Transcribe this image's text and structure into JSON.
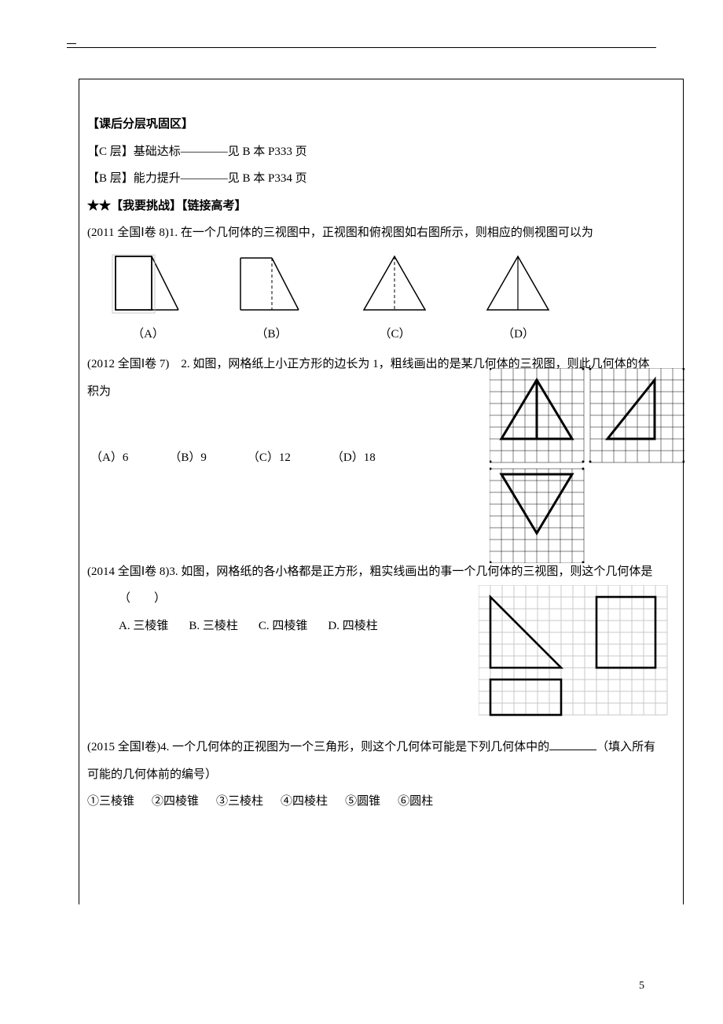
{
  "header": {
    "rule_width": 750
  },
  "sections": {
    "consolidation": "【课后分层巩固区】",
    "level_c": "【C 层】基础达标————见 B 本 P333 页",
    "level_b": "【B 层】能力提升————见 B 本 P334 页",
    "challenge": "★★【我要挑战】【链接高考】"
  },
  "q1": {
    "stem": "(2011 全国Ⅰ卷 8)1. 在一个几何体的三视图中，正视图和俯视图如右图所示，则相应的侧视图可以为",
    "options": {
      "A": "（A）",
      "B": "（B）",
      "C": "（C）",
      "D": "（D）"
    },
    "figures": {
      "type": "line-diagrams",
      "stroke": "#000000",
      "width": 90,
      "height": 80
    }
  },
  "q2": {
    "stem_a": "(2012 全国Ⅰ卷 7)　2. 如图，网格纸上小正方形的边长为 1，粗线画出的是某几何体的三视图，则此几何体的体",
    "stem_b": "积为",
    "options": {
      "A": "（A）6",
      "B": "（B）9",
      "C": "（C）12",
      "D": "（D）18"
    },
    "grid": {
      "cols": 16,
      "rows": 16,
      "cell": 15,
      "stroke": "#000000",
      "thick": 2.5,
      "front": {
        "type": "triangle",
        "pts": [
          [
            1,
            6
          ],
          [
            7,
            6
          ],
          [
            4,
            1
          ]
        ]
      },
      "side": {
        "type": "triangle",
        "pts": [
          [
            10,
            6
          ],
          [
            14,
            6
          ],
          [
            14,
            1
          ]
        ]
      },
      "top": {
        "type": "triangle",
        "pts": [
          [
            1,
            9
          ],
          [
            7,
            9
          ],
          [
            4,
            14
          ]
        ]
      }
    }
  },
  "q3": {
    "stem": "(2014 全国Ⅰ卷 8)3. 如图，网格纸的各小格都是正方形，粗实线画出的事一个几何体的三视图，则这个几何体是",
    "paren": "（　　）",
    "options": {
      "A": "A. 三棱锥",
      "B": "B. 三棱柱",
      "C": "C. 四棱锥",
      "D": "D. 四棱柱"
    },
    "grid": {
      "cols": 16,
      "rows": 11,
      "cell": 15,
      "stroke": "#c8c8c8",
      "thick_stroke": "#000000",
      "front": {
        "type": "right-triangle",
        "pts": [
          [
            1,
            1
          ],
          [
            7,
            7
          ],
          [
            1,
            7
          ]
        ]
      },
      "side": {
        "type": "rect",
        "pts": [
          [
            10,
            1
          ],
          [
            15,
            1
          ],
          [
            15,
            7
          ],
          [
            10,
            7
          ]
        ]
      },
      "top": {
        "type": "rect",
        "pts": [
          [
            1,
            8
          ],
          [
            7,
            8
          ],
          [
            7,
            11
          ],
          [
            1,
            11
          ]
        ]
      }
    }
  },
  "q4": {
    "stem_a": "(2015 全国Ⅰ卷)4. 一个几何体的正视图为一个三角形，则这个几何体可能是下列几何体中的",
    "stem_b": "（填入所有",
    "stem_c": "可能的几何体前的编号）",
    "options": {
      "1": "①三棱锥",
      "2": "②四棱锥",
      "3": "③三棱柱",
      "4": "④四棱柱",
      "5": "⑤圆锥",
      "6": "⑥圆柱"
    }
  },
  "page_number": "5"
}
